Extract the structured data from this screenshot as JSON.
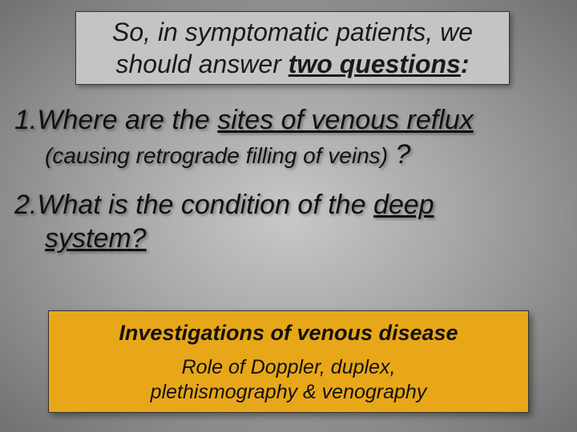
{
  "title": {
    "line1": "So, in symptomatic patients, we",
    "line2_pre": "should answer ",
    "line2_u": "two questions",
    "line2_post": ":"
  },
  "item1": {
    "num": "1.",
    "text_pre": "Where are the ",
    "text_u": "sites of venous reflux",
    "sub_paren": "(causing retrograde filling of veins)",
    "sub_q": " ?"
  },
  "item2": {
    "num": "2.",
    "text_pre": "What is the condition of the ",
    "text_u1": "deep",
    "text_u2": "system?"
  },
  "yellowbox": {
    "title": "Investigations of venous disease",
    "sub1": "Role of Doppler, duplex,",
    "sub2": "plethismography & venography"
  },
  "colors": {
    "title_bg": "#c4c4c4",
    "yellow_bg": "#e8a718",
    "text": "#111111",
    "border": "#333333"
  },
  "fonts": {
    "title_size": 32,
    "list_size": 34,
    "sub_size": 28,
    "ybox_title_size": 27,
    "ybox_sub_size": 25,
    "family": "Verdana"
  }
}
